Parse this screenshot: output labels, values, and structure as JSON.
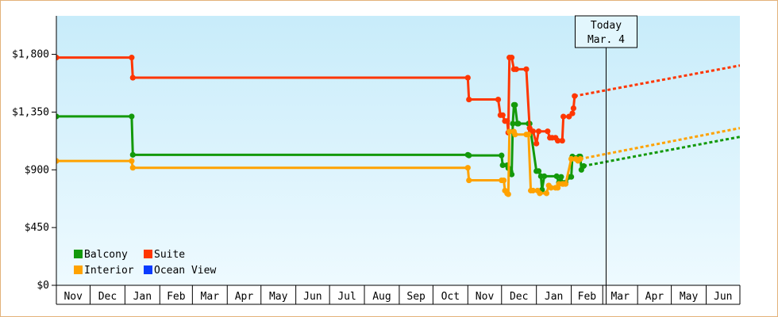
{
  "chart_data": {
    "type": "line",
    "title": "",
    "xlabel": "",
    "ylabel": "",
    "ylim": [
      0,
      2100
    ],
    "yticks": [
      {
        "value": 0,
        "label": "$0"
      },
      {
        "value": 450,
        "label": "$450"
      },
      {
        "value": 900,
        "label": "$900"
      },
      {
        "value": 1350,
        "label": "$1,350"
      },
      {
        "value": 1800,
        "label": "$1,800"
      }
    ],
    "x_start": "2023-11-01",
    "x_end": "2025-07-01",
    "month_labels": [
      {
        "date": "2023-11-01",
        "label": "Nov"
      },
      {
        "date": "2023-12-01",
        "label": "Dec"
      },
      {
        "date": "2024-01-01",
        "label": "Jan"
      },
      {
        "date": "2024-02-01",
        "label": "Feb"
      },
      {
        "date": "2024-03-01",
        "label": "Mar"
      },
      {
        "date": "2024-04-01",
        "label": "Apr"
      },
      {
        "date": "2024-05-01",
        "label": "May"
      },
      {
        "date": "2024-06-01",
        "label": "Jun"
      },
      {
        "date": "2024-07-01",
        "label": "Jul"
      },
      {
        "date": "2024-08-01",
        "label": "Aug"
      },
      {
        "date": "2024-09-01",
        "label": "Sep"
      },
      {
        "date": "2024-10-01",
        "label": "Oct"
      },
      {
        "date": "2024-11-01",
        "label": "Nov"
      },
      {
        "date": "2024-12-01",
        "label": "Dec"
      },
      {
        "date": "2025-01-01",
        "label": "Jan"
      },
      {
        "date": "2025-02-01",
        "label": "Feb"
      },
      {
        "date": "2025-03-01",
        "label": "Mar"
      },
      {
        "date": "2025-04-01",
        "label": "Apr"
      },
      {
        "date": "2025-05-01",
        "label": "May"
      },
      {
        "date": "2025-06-01",
        "label": "Jun"
      }
    ],
    "today": {
      "date": "2025-03-04",
      "line1": "Today",
      "line2": "Mar. 4"
    },
    "legend_position": "bottom-left",
    "series": [
      {
        "name": "Balcony",
        "color": "#13990a",
        "points": [
          [
            "2023-11-01",
            1316
          ],
          [
            "2024-01-07",
            1316
          ],
          [
            "2024-01-08",
            1017
          ],
          [
            "2024-11-01",
            1017
          ],
          [
            "2024-11-02",
            1012
          ],
          [
            "2024-12-01",
            1012
          ],
          [
            "2024-12-02",
            936
          ],
          [
            "2024-12-06",
            936
          ],
          [
            "2024-12-07",
            914
          ],
          [
            "2024-12-09",
            887
          ],
          [
            "2024-12-10",
            864
          ],
          [
            "2024-12-11",
            1260
          ],
          [
            "2024-12-12",
            1406
          ],
          [
            "2024-12-13",
            1406
          ],
          [
            "2024-12-15",
            1260
          ],
          [
            "2024-12-16",
            1260
          ],
          [
            "2024-12-25",
            1260
          ],
          [
            "2024-12-26",
            1260
          ],
          [
            "2025-01-01",
            890
          ],
          [
            "2025-01-03",
            890
          ],
          [
            "2025-01-05",
            850
          ],
          [
            "2025-01-06",
            745
          ],
          [
            "2025-01-08",
            850
          ],
          [
            "2025-01-19",
            850
          ],
          [
            "2025-01-21",
            800
          ],
          [
            "2025-01-23",
            845
          ],
          [
            "2025-01-24",
            800
          ],
          [
            "2025-01-27",
            800
          ],
          [
            "2025-01-30",
            845
          ],
          [
            "2025-02-01",
            845
          ],
          [
            "2025-02-02",
            1004
          ],
          [
            "2025-02-08",
            1004
          ],
          [
            "2025-02-09",
            1004
          ],
          [
            "2025-02-10",
            900
          ],
          [
            "2025-02-12",
            930
          ]
        ],
        "projection": [
          [
            "2025-02-12",
            930
          ],
          [
            "2025-07-01",
            1157
          ]
        ]
      },
      {
        "name": "Suite",
        "color": "#ff3600",
        "points": [
          [
            "2023-11-01",
            1775
          ],
          [
            "2024-01-07",
            1775
          ],
          [
            "2024-01-08",
            1618
          ],
          [
            "2024-11-01",
            1618
          ],
          [
            "2024-11-02",
            1448
          ],
          [
            "2024-11-28",
            1448
          ],
          [
            "2024-11-30",
            1326
          ],
          [
            "2024-12-02",
            1326
          ],
          [
            "2024-12-04",
            1280
          ],
          [
            "2024-12-06",
            1280
          ],
          [
            "2024-12-07",
            1190
          ],
          [
            "2024-12-08",
            1775
          ],
          [
            "2024-12-10",
            1775
          ],
          [
            "2024-12-12",
            1684
          ],
          [
            "2024-12-14",
            1684
          ],
          [
            "2024-12-23",
            1684
          ],
          [
            "2024-12-26",
            1225
          ],
          [
            "2024-12-27",
            1200
          ],
          [
            "2024-12-29",
            1200
          ],
          [
            "2025-01-01",
            1105
          ],
          [
            "2025-01-03",
            1200
          ],
          [
            "2025-01-11",
            1200
          ],
          [
            "2025-01-13",
            1150
          ],
          [
            "2025-01-15",
            1150
          ],
          [
            "2025-01-18",
            1150
          ],
          [
            "2025-01-20",
            1127
          ],
          [
            "2025-01-24",
            1127
          ],
          [
            "2025-01-25",
            1315
          ],
          [
            "2025-01-30",
            1315
          ],
          [
            "2025-02-02",
            1340
          ],
          [
            "2025-02-03",
            1380
          ],
          [
            "2025-02-04",
            1475
          ]
        ],
        "projection": [
          [
            "2025-02-04",
            1475
          ],
          [
            "2025-07-01",
            1713
          ]
        ]
      },
      {
        "name": "Interior",
        "color": "#ffa200",
        "points": [
          [
            "2023-11-01",
            969
          ],
          [
            "2024-01-07",
            969
          ],
          [
            "2024-01-08",
            916
          ],
          [
            "2024-11-01",
            916
          ],
          [
            "2024-11-02",
            818
          ],
          [
            "2024-12-01",
            818
          ],
          [
            "2024-12-03",
            818
          ],
          [
            "2024-12-04",
            738
          ],
          [
            "2024-12-06",
            716
          ],
          [
            "2024-12-07",
            710
          ],
          [
            "2024-12-08",
            1198
          ],
          [
            "2024-12-12",
            1198
          ],
          [
            "2024-12-13",
            1175
          ],
          [
            "2024-12-23",
            1175
          ],
          [
            "2024-12-25",
            1175
          ],
          [
            "2024-12-27",
            738
          ],
          [
            "2024-12-29",
            738
          ],
          [
            "2025-01-02",
            738
          ],
          [
            "2025-01-04",
            717
          ],
          [
            "2025-01-10",
            717
          ],
          [
            "2025-01-12",
            778
          ],
          [
            "2025-01-14",
            760
          ],
          [
            "2025-01-18",
            760
          ],
          [
            "2025-01-20",
            760
          ],
          [
            "2025-01-21",
            790
          ],
          [
            "2025-01-24",
            790
          ],
          [
            "2025-01-25",
            790
          ],
          [
            "2025-01-27",
            790
          ],
          [
            "2025-02-01",
            985
          ],
          [
            "2025-02-05",
            985
          ],
          [
            "2025-02-07",
            970
          ],
          [
            "2025-02-09",
            985
          ]
        ],
        "projection": [
          [
            "2025-02-09",
            985
          ],
          [
            "2025-07-01",
            1225
          ]
        ]
      },
      {
        "name": "Ocean View",
        "color": "#0a3bff",
        "points": [],
        "projection": []
      }
    ]
  }
}
